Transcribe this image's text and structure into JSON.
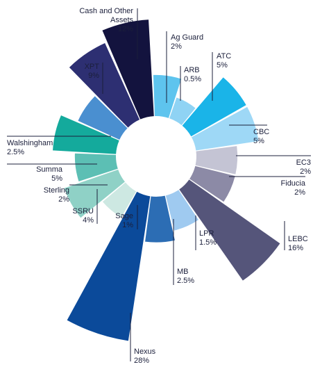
{
  "chart_data": {
    "type": "polar-bar",
    "categories": [
      "Ag Guard",
      "ARB",
      "ATC",
      "CBC",
      "EC3",
      "Fiducia",
      "LEBC",
      "LPR",
      "MB",
      "Nexus",
      "Sage",
      "SSRU",
      "Sterling",
      "Summa",
      "Walshingham",
      "XPT",
      "Cash and Other Assets"
    ],
    "values": [
      2,
      0.5,
      5,
      5,
      2,
      2,
      16,
      1.5,
      2.5,
      28,
      1,
      4,
      2,
      5,
      2.5,
      9,
      12
    ],
    "value_labels": [
      "2%",
      "0.5%",
      "5%",
      "5%",
      "2%",
      "2%",
      "16%",
      "1.5%",
      "2.5%",
      "28%",
      "1%",
      "4%",
      "2%",
      "5%",
      "2.5%",
      "9%",
      "12%"
    ],
    "colors": [
      "#5ec4ee",
      "#8fd3f4",
      "#1ab4e8",
      "#9ed8f6",
      "#c4c4d4",
      "#8c8aa6",
      "#55557a",
      "#9fcaf0",
      "#2c6db4",
      "#0b4a9a",
      "#cde8e2",
      "#8fd1c6",
      "#5cbfb4",
      "#14aa9c",
      "#4a8fd0",
      "#2d2f72",
      "#13133e"
    ]
  }
}
